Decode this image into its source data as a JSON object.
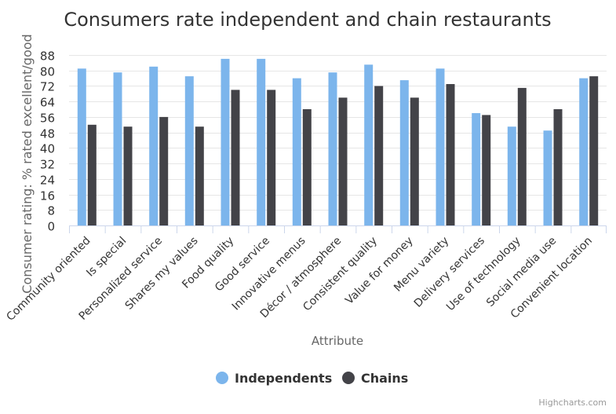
{
  "chart_data": {
    "type": "bar",
    "title": "Consumers rate independent and chain restaurants",
    "xlabel": "Attribute",
    "ylabel": "Consumer rating: % rated excellent/good",
    "ylim": [
      0,
      88
    ],
    "yticks": [
      0,
      8,
      16,
      24,
      32,
      40,
      48,
      56,
      64,
      72,
      80,
      88
    ],
    "grid": true,
    "legend_position": "bottom-center",
    "categories": [
      "Community oriented",
      "Is special",
      "Personalized service",
      "Shares my values",
      "Food quality",
      "Good service",
      "Innovative menus",
      "Décor / atmosphere",
      "Consistent quality",
      "Value for money",
      "Menu variety",
      "Delivery services",
      "Use of technology",
      "Social media use",
      "Convenient location"
    ],
    "series": [
      {
        "name": "Independents",
        "color": "#7cb5ec",
        "values": [
          81,
          79,
          82,
          77,
          86,
          86,
          76,
          79,
          83,
          75,
          81,
          58,
          51,
          49,
          76
        ]
      },
      {
        "name": "Chains",
        "color": "#434348",
        "values": [
          52,
          51,
          56,
          51,
          70,
          70,
          60,
          66,
          72,
          66,
          73,
          57,
          71,
          60,
          77
        ]
      }
    ]
  },
  "credits": {
    "text": "Highcharts.com"
  }
}
